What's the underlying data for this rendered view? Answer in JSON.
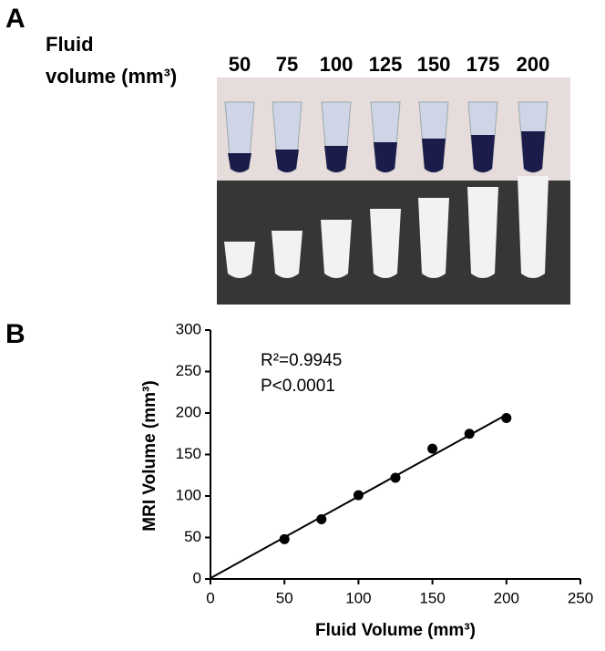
{
  "panel_a": {
    "label": "A",
    "heading_line1": "Fluid",
    "heading_line2": "volume (mm³)",
    "volumes": [
      "50",
      "75",
      "100",
      "125",
      "150",
      "175",
      "200"
    ]
  },
  "chart_data": {
    "type": "scatter",
    "panel_label": "B",
    "xlabel": "Fluid Volume (mm³)",
    "ylabel": "MRI Volume  (mm³)",
    "annotations": [
      "R²=0.9945",
      "P<0.0001"
    ],
    "x": [
      50,
      75,
      100,
      125,
      150,
      175,
      200
    ],
    "series": [
      {
        "values": [
          48,
          72,
          101,
          122,
          157,
          175,
          194
        ],
        "color": "#000000"
      }
    ],
    "fit": {
      "x": [
        0,
        200
      ],
      "y": [
        1,
        198
      ]
    },
    "xlim": [
      0,
      250
    ],
    "ylim": [
      0,
      300
    ],
    "xticks": [
      0,
      50,
      100,
      150,
      200,
      250
    ],
    "yticks": [
      0,
      50,
      100,
      150,
      200,
      250,
      300
    ]
  }
}
